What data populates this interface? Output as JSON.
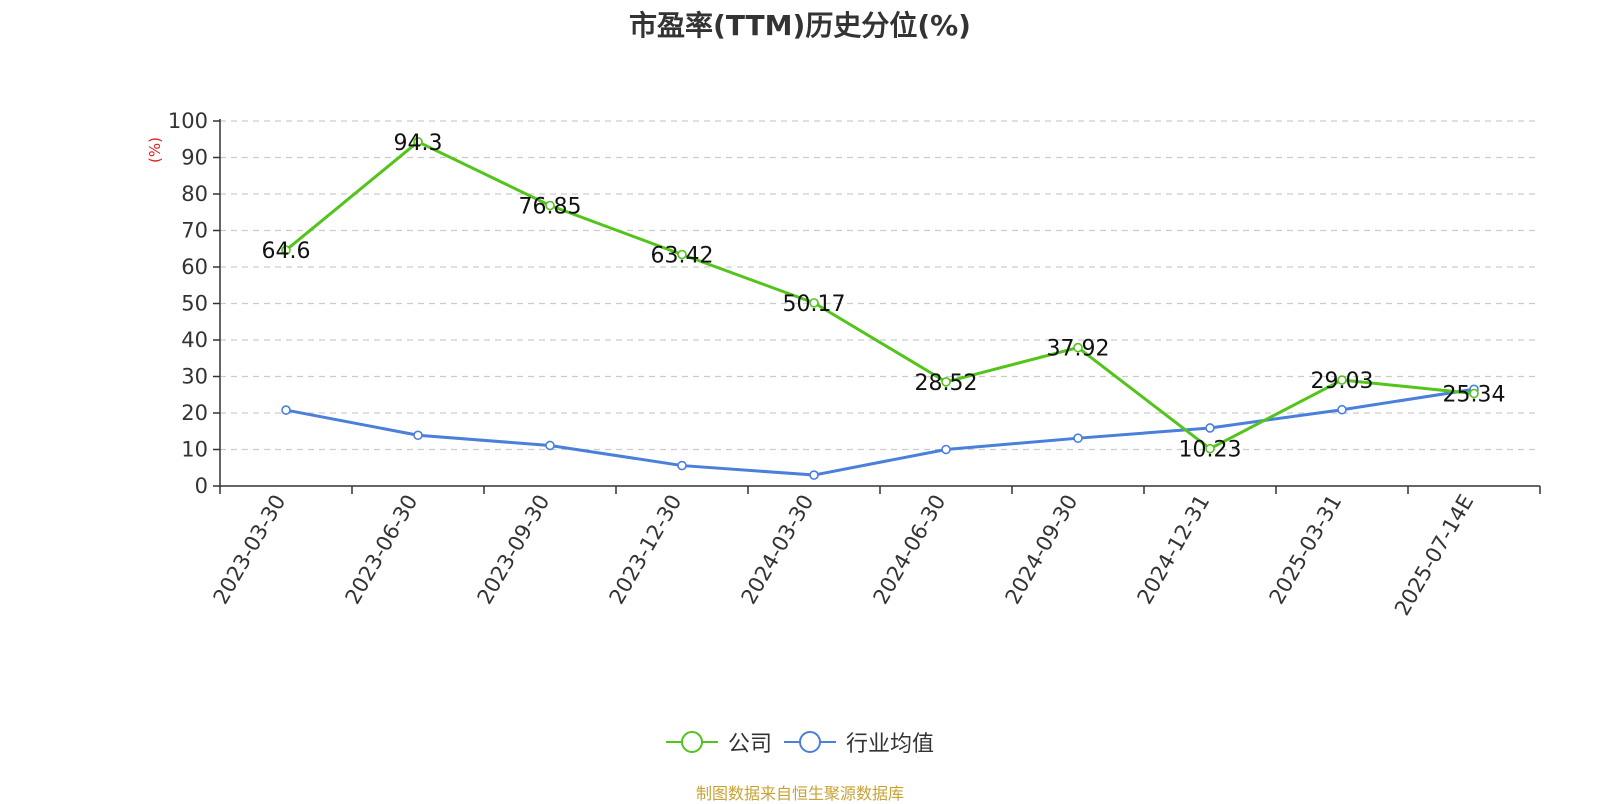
{
  "chart_data": {
    "type": "line",
    "title": "市盈率(TTM)历史分位(%)",
    "ylabel": "(%)",
    "xlabel": "",
    "ylim": [
      0,
      100
    ],
    "yticks": [
      0,
      10,
      20,
      30,
      40,
      50,
      60,
      70,
      80,
      90,
      100
    ],
    "grid": "horizontal-dashed",
    "legend_position": "bottom-center",
    "categories": [
      "2023-03-30",
      "2023-06-30",
      "2023-09-30",
      "2023-12-30",
      "2024-03-30",
      "2024-06-30",
      "2024-09-30",
      "2024-12-31",
      "2025-03-31",
      "2025-07-14E"
    ],
    "series": [
      {
        "name": "公司",
        "color": "#52c41a",
        "values": [
          64.6,
          94.3,
          76.85,
          63.42,
          50.17,
          28.52,
          37.92,
          10.23,
          29.03,
          25.34
        ],
        "labels": [
          "64.6",
          "94.3",
          "76.85",
          "63.42",
          "50.17",
          "28.52",
          "37.92",
          "10.23",
          "29.03",
          "25.34"
        ]
      },
      {
        "name": "行业均值",
        "color": "#4a7fdb",
        "values": [
          20.8,
          13.9,
          11.1,
          5.6,
          3.0,
          10.0,
          13.1,
          15.9,
          20.9,
          26.5
        ]
      }
    ]
  },
  "legend": {
    "company": "公司",
    "industry": "行业均值"
  },
  "source_note": "制图数据来自恒生聚源数据库"
}
